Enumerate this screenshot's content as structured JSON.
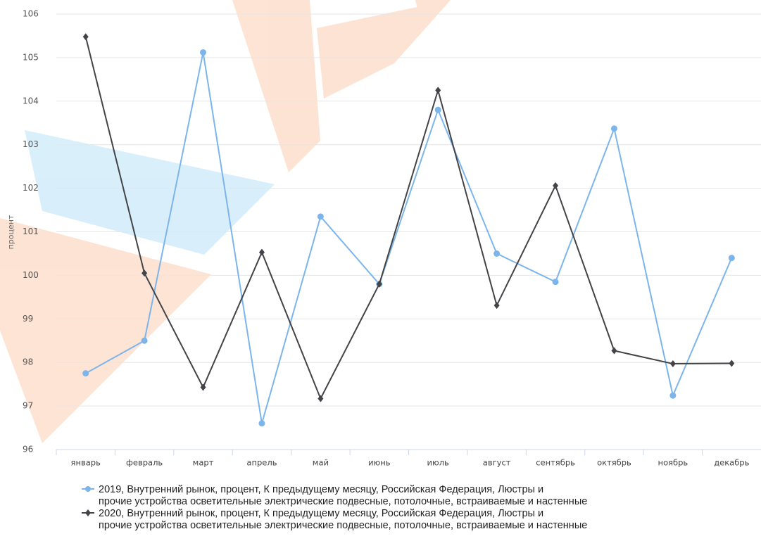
{
  "chart_data": {
    "type": "line",
    "y_label": "процент",
    "categories": [
      "январь",
      "февраль",
      "март",
      "апрель",
      "май",
      "июнь",
      "июль",
      "август",
      "сентябрь",
      "октябрь",
      "ноябрь",
      "декабрь"
    ],
    "series": [
      {
        "name": "2019, Внутренний рынок, процент, К предыдущему месяцу, Российская Федерация, Люстры и\nпрочие устройства осветительные электрические подвесные, потолочные, встраиваемые и настенные",
        "color": "#7cb5ec",
        "marker": "circle",
        "values": [
          97.75,
          98.5,
          105.12,
          96.6,
          101.35,
          99.8,
          103.8,
          100.5,
          99.85,
          103.37,
          97.24,
          100.4
        ]
      },
      {
        "name": "2020, Внутренний рынок, процент, К предыдущему месяцу, Российская Федерация, Люстры и\nпрочие устройства осветительные электрические подвесные, потолочные, встраиваемые и настенные",
        "color": "#434348",
        "marker": "diamond",
        "values": [
          105.48,
          100.05,
          97.43,
          100.53,
          97.17,
          99.8,
          104.25,
          99.31,
          102.06,
          98.27,
          97.97,
          97.98
        ]
      }
    ],
    "ylim": [
      96,
      106
    ],
    "yticks": [
      96,
      97,
      98,
      99,
      100,
      101,
      102,
      103,
      104,
      105,
      106
    ],
    "grid": true
  }
}
